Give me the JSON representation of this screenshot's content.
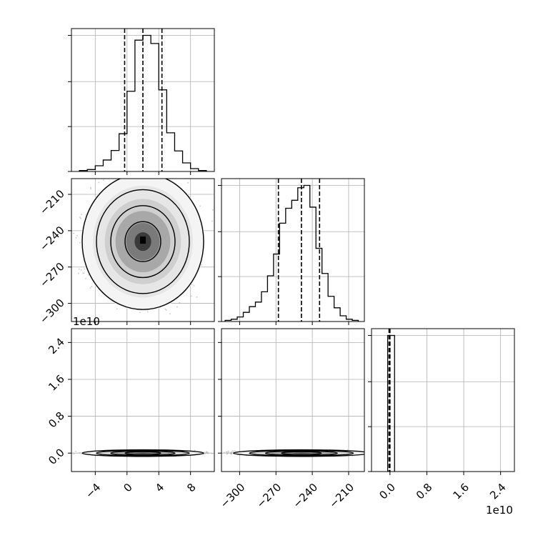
{
  "chart_data": {
    "type": "corner",
    "grid": true,
    "colors": {
      "line": "#000000",
      "grid": "#b0b0b0",
      "point": "#9a9a9a",
      "background": "#ffffff"
    },
    "parameters": [
      {
        "range": [
          -7,
          11
        ],
        "ticks": [
          -4,
          0,
          4,
          8
        ],
        "tick_labels": [
          "−4",
          "0",
          "4",
          "8"
        ],
        "offset_label": "1e10"
      },
      {
        "range": [
          -315,
          -197
        ],
        "ticks": [
          -300,
          -270,
          -240,
          -210
        ],
        "tick_labels": [
          "−300",
          "−270",
          "−240",
          "−210"
        ],
        "offset_label": ""
      },
      {
        "range": [
          -0.4,
          2.7
        ],
        "ticks": [
          0.0,
          0.8,
          1.6,
          2.4
        ],
        "tick_labels": [
          "0.0",
          "0.8",
          "1.6",
          "2.4"
        ],
        "offset_label": "1e10"
      }
    ],
    "diagonal": [
      {
        "param": 0,
        "bin_edges": [
          -6,
          -5,
          -4,
          -3,
          -2,
          -1,
          0,
          1,
          2,
          3,
          4,
          5,
          6,
          7,
          8,
          9,
          10
        ],
        "counts": [
          2,
          4,
          12,
          24,
          44,
          79,
          168,
          275,
          285,
          268,
          171,
          81,
          43,
          18,
          6,
          2
        ],
        "quantiles": [
          -0.3,
          2.0,
          4.4
        ]
      },
      {
        "param": 1,
        "bin_edges": [
          -312,
          -307,
          -302,
          -297,
          -292,
          -287,
          -282,
          -277,
          -272,
          -267,
          -262,
          -257,
          -252,
          -247,
          -242,
          -237,
          -232,
          -227,
          -222,
          -217,
          -212,
          -207,
          -202
        ],
        "counts": [
          1,
          2,
          4,
          8,
          13,
          17,
          26,
          40,
          59,
          86,
          99,
          106,
          117,
          119,
          100,
          64,
          42,
          22,
          12,
          5,
          2,
          1
        ],
        "quantiles": [
          -268,
          -249,
          -234
        ]
      },
      {
        "param": 2,
        "bin_edges": [
          -0.05,
          0.1
        ],
        "counts": [
          100
        ],
        "quantiles": [
          -0.02,
          -0.01,
          0.0
        ]
      }
    ],
    "offdiagonal": [
      {
        "x_param": 0,
        "y_param": 1,
        "center": [
          2.0,
          -249
        ],
        "spread": [
          3.0,
          22.0
        ]
      },
      {
        "x_param": 0,
        "y_param": 2,
        "center": [
          2.0,
          0.0
        ],
        "spread": [
          3.0,
          0.02
        ]
      },
      {
        "x_param": 1,
        "y_param": 2,
        "center": [
          -249,
          0.0
        ],
        "spread": [
          22.0,
          0.02
        ]
      }
    ]
  }
}
